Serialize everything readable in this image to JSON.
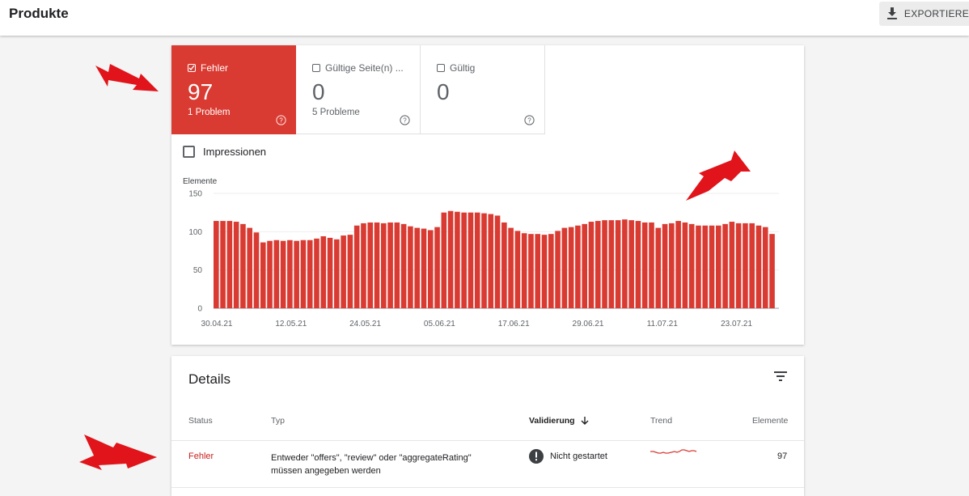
{
  "header": {
    "title": "Produkte",
    "export_label": "EXPORTIEREN"
  },
  "tiles": [
    {
      "label": "Fehler",
      "count": "97",
      "sub": "1 Problem",
      "checked": true
    },
    {
      "label": "Gültige Seite(n) ...",
      "count": "0",
      "sub": "5 Probleme",
      "checked": false
    },
    {
      "label": "Gültig",
      "count": "0",
      "sub": "",
      "checked": false
    }
  ],
  "impressions_label": "Impressionen",
  "chart_data": {
    "type": "bar",
    "ylabel": "Elemente",
    "ylim": [
      0,
      150
    ],
    "yticks": [
      "150",
      "100",
      "50",
      "0"
    ],
    "xtick_labels": [
      "30.04.21",
      "12.05.21",
      "24.05.21",
      "05.06.21",
      "17.06.21",
      "29.06.21",
      "11.07.21",
      "23.07.21"
    ],
    "color": "#d93b32",
    "values": [
      114,
      114,
      114,
      113,
      110,
      105,
      99,
      86,
      88,
      89,
      88,
      89,
      88,
      89,
      89,
      91,
      94,
      92,
      90,
      95,
      96,
      108,
      111,
      112,
      112,
      111,
      112,
      112,
      110,
      107,
      105,
      104,
      102,
      106,
      125,
      127,
      126,
      125,
      125,
      125,
      124,
      123,
      121,
      112,
      105,
      101,
      98,
      97,
      97,
      96,
      97,
      101,
      105,
      106,
      108,
      110,
      113,
      114,
      115,
      115,
      115,
      116,
      115,
      114,
      112,
      112,
      105,
      110,
      111,
      114,
      112,
      110,
      108,
      108,
      108,
      108,
      110,
      113,
      111,
      111,
      111,
      108,
      106,
      97
    ]
  },
  "details": {
    "title": "Details",
    "columns": {
      "status": "Status",
      "typ": "Typ",
      "validierung": "Validierung",
      "trend": "Trend",
      "elemente": "Elemente"
    },
    "rows": [
      {
        "status": "Fehler",
        "typ_line1": "Entweder \"offers\", \"review\" oder \"aggregateRating\"",
        "typ_line2": "müssen angegeben werden",
        "validierung": "Nicht gestartet",
        "elemente": "97"
      }
    ]
  },
  "colors": {
    "error": "#d93b32",
    "arrow": "#e0141a",
    "accent_text": "#c5221f"
  }
}
